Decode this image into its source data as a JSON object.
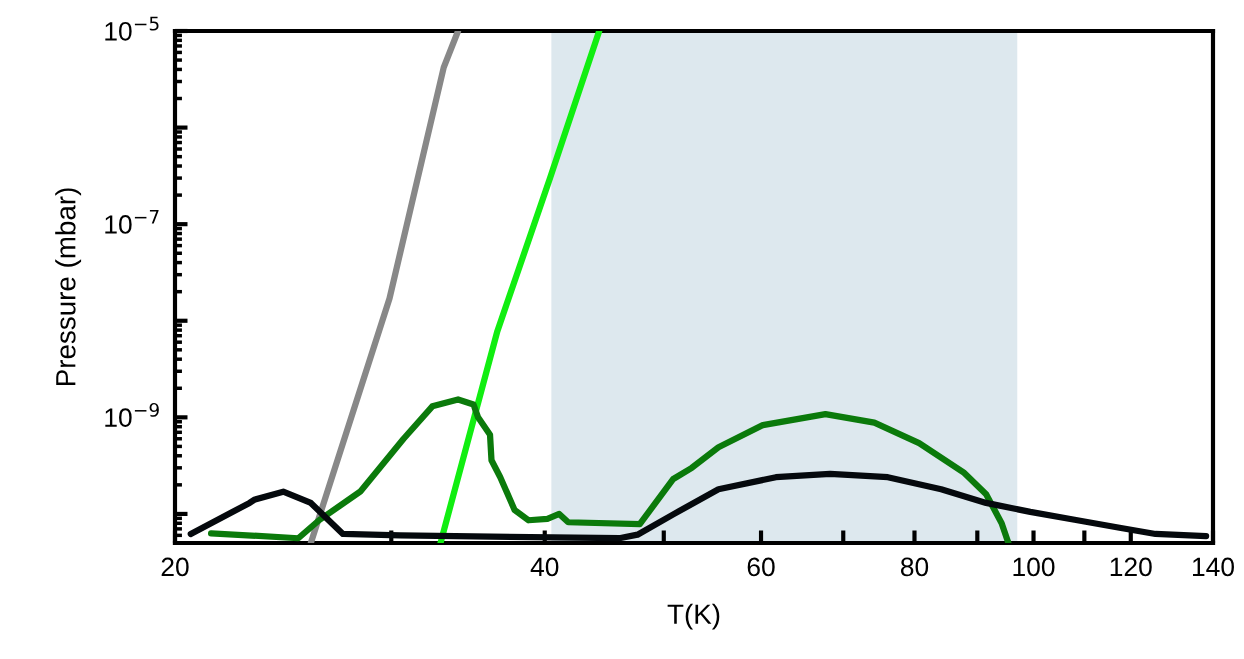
{
  "chart_data": {
    "type": "line",
    "xlabel": "T(K)",
    "ylabel": "Pressure (mbar)",
    "log": "xy",
    "grid": false,
    "marker": "none",
    "line_style": "solid",
    "xlim": [
      20,
      140
    ],
    "xticks": [
      20,
      {
        "value": 30,
        "label": null
      },
      40,
      {
        "value": 50,
        "label": null
      },
      60,
      {
        "value": 70,
        "label": null
      },
      80,
      {
        "value": 90,
        "label": null
      },
      100,
      {
        "value": 110,
        "label": null
      },
      120,
      140
    ],
    "ylim": [
      5e-11,
      1e-05
    ],
    "yticks": [
      {
        "value": 1e-10,
        "label": null
      },
      {
        "value": 1e-09,
        "label": "10$^{−9}$"
      },
      {
        "value": 1e-08,
        "label": null
      },
      {
        "value": 1e-07,
        "label": "10$^{−7}$"
      },
      {
        "value": 1e-06,
        "label": null
      },
      {
        "value": 1e-05,
        "label": "10$^{−5}$"
      }
    ],
    "bands": [
      {
        "axis": "x",
        "from": 40.5,
        "to": 97,
        "color": "#dde8ee"
      }
    ],
    "series": [
      {
        "color": "#888888",
        "x": [
          25.8,
          29.9,
          33.1,
          34.0
        ],
        "values": [
          5e-11,
          1.7e-08,
          4.2e-06,
          1e-05
        ]
      },
      {
        "color": "#11ee11",
        "x": [
          32.9,
          36.6,
          40.4,
          44.3
        ],
        "values": [
          5e-11,
          7.8e-09,
          3e-07,
          1e-05
        ]
      },
      {
        "color": "#0b7a0b",
        "x": [
          21.4,
          25.2,
          26.2,
          28.3,
          30.7,
          32.4,
          34.0,
          35.0,
          35.3,
          36.1,
          36.2,
          36.8,
          37.8,
          38.8,
          40.2,
          41.1,
          41.8,
          47.8,
          50.9,
          52.7,
          55.4,
          60.2,
          67.7,
          74.2,
          80.7,
          87.7,
          91.5,
          94.2,
          95.4
        ],
        "values": [
          6.3e-11,
          5.6e-11,
          8.6e-11,
          1.7e-10,
          6e-10,
          1.3e-09,
          1.53e-09,
          1.36e-09,
          1e-09,
          6.6e-10,
          3.6e-10,
          2.4e-10,
          1.1e-10,
          8.6e-11,
          8.9e-11,
          1e-10,
          8.2e-11,
          7.85e-11,
          2.3e-10,
          3e-10,
          4.9e-10,
          8.3e-10,
          1.08e-09,
          8.8e-10,
          5.4e-10,
          2.7e-10,
          1.6e-10,
          8e-11,
          5e-11
        ]
      },
      {
        "color": "#05090d",
        "x": [
          20.6,
          23.0,
          23.2,
          24.5,
          25.8,
          26.6,
          27.4,
          30.5,
          46.0,
          47.6,
          50.9,
          55.4,
          61.7,
          68.3,
          76.1,
          84.1,
          91.5,
          99.4,
          108,
          117.5,
          125.7,
          138.2
        ],
        "values": [
          6.2e-11,
          1.3e-10,
          1.4e-10,
          1.7e-10,
          1.3e-10,
          8.9e-11,
          6.2e-11,
          6e-11,
          5.6e-11,
          6.1e-11,
          9.9e-11,
          1.8e-10,
          2.4e-10,
          2.6e-10,
          2.4e-10,
          1.8e-10,
          1.3e-10,
          1.05e-10,
          8.7e-11,
          7.2e-11,
          6.2e-11,
          5.9e-11
        ]
      }
    ]
  }
}
